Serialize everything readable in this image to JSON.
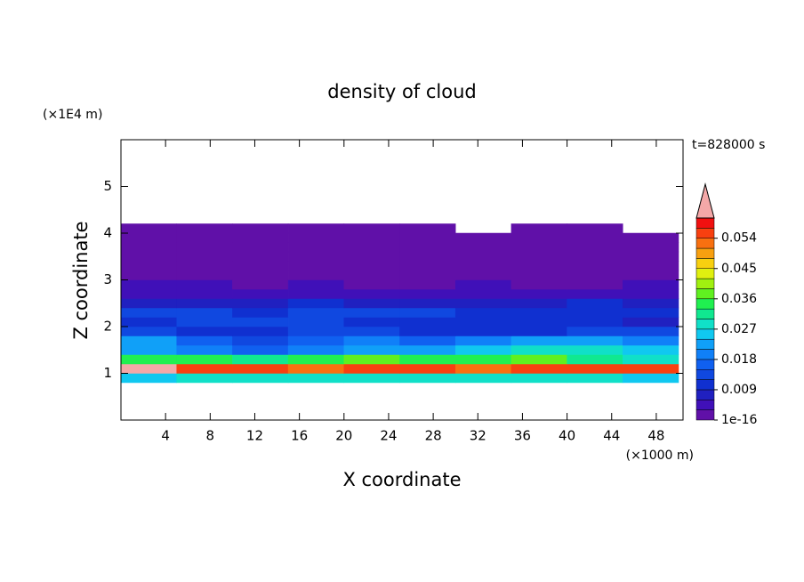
{
  "chart_data": {
    "type": "contour",
    "title": "density of cloud",
    "x_label": "X coordinate",
    "y_label": "Z coordinate",
    "x_unit": "(×1000 m)",
    "y_unit": "(×1E4 m)",
    "annotation": "t=828000 s",
    "xlim": [
      0,
      50.4
    ],
    "ylim": [
      0,
      6
    ],
    "xticks": [
      4,
      8,
      12,
      16,
      20,
      24,
      28,
      32,
      36,
      40,
      44,
      48
    ],
    "yticks": [
      1,
      2,
      3,
      4,
      5
    ],
    "x": [
      2.5,
      7.5,
      12.5,
      17.5,
      22.5,
      27.5,
      32.5,
      37.5,
      42.5,
      47.5
    ],
    "y": [
      0.9,
      1.1,
      1.3,
      1.5,
      1.7,
      1.9,
      2.1,
      2.3,
      2.5,
      2.7,
      2.9,
      3.1,
      3.3,
      3.5,
      3.7,
      3.9,
      4.1
    ],
    "z": [
      [
        0.027,
        0.03,
        0.03,
        0.028,
        0.03,
        0.029,
        0.028,
        0.03,
        0.03,
        0.027
      ],
      [
        0.061,
        0.055,
        0.054,
        0.052,
        0.055,
        0.054,
        0.053,
        0.055,
        0.054,
        0.056
      ],
      [
        0.036,
        0.035,
        0.033,
        0.036,
        0.038,
        0.035,
        0.034,
        0.037,
        0.033,
        0.03
      ],
      [
        0.022,
        0.02,
        0.018,
        0.02,
        0.024,
        0.022,
        0.026,
        0.03,
        0.028,
        0.025
      ],
      [
        0.024,
        0.016,
        0.015,
        0.018,
        0.02,
        0.017,
        0.02,
        0.024,
        0.022,
        0.02
      ],
      [
        0.014,
        0.011,
        0.01,
        0.013,
        0.014,
        0.012,
        0.011,
        0.012,
        0.014,
        0.013
      ],
      [
        0.012,
        0.013,
        0.014,
        0.013,
        0.012,
        0.01,
        0.011,
        0.012,
        0.01,
        0.009
      ],
      [
        0.015,
        0.013,
        0.012,
        0.014,
        0.015,
        0.013,
        0.012,
        0.011,
        0.012,
        0.01
      ],
      [
        0.009,
        0.008,
        0.009,
        0.01,
        0.008,
        0.007,
        0.008,
        0.009,
        0.01,
        0.008
      ],
      [
        0.006,
        0.005,
        0.006,
        0.005,
        0.005,
        0.004,
        0.005,
        0.004,
        0.005,
        0.004
      ],
      [
        0.004,
        0.004,
        0.003,
        0.004,
        0.003,
        0.003,
        0.004,
        0.003,
        0.003,
        0.004
      ],
      [
        0.003,
        0.002,
        0.002,
        0.003,
        0.002,
        0.002,
        0.002,
        0.002,
        0.002,
        0.002
      ],
      [
        0.001,
        0.001,
        0.001,
        0.001,
        0.001,
        0.001,
        0.001,
        0.001,
        0.001,
        0.001
      ],
      [
        0.001,
        0.001,
        0.001,
        0.001,
        0.001,
        0.001,
        0.001,
        0.001,
        0.001,
        0.001
      ],
      [
        0.001,
        0.001,
        0.001,
        0.001,
        0.001,
        0.001,
        0.001,
        0.001,
        0.001,
        0.001
      ],
      [
        0.001,
        0.001,
        0.001,
        0.001,
        0.001,
        0.001,
        0.001,
        0.001,
        0.001,
        0.001
      ],
      [
        0.001,
        0.001,
        0.001,
        0.001,
        0.001,
        0.001,
        null,
        0.001,
        0.001,
        null
      ]
    ],
    "clim": [
      1e-16,
      0.06
    ],
    "colorbar_ticks": [
      1e-16,
      0.009,
      0.018,
      0.027,
      0.036,
      0.045,
      0.054
    ],
    "colors": [
      "#6010a8",
      "#4010b8",
      "#2020c0",
      "#1030d0",
      "#1048e0",
      "#1060f0",
      "#1080f8",
      "#10a0f8",
      "#10c8f0",
      "#10e0c8",
      "#10e890",
      "#20f050",
      "#60f020",
      "#a0f010",
      "#e0f010",
      "#f8d010",
      "#f8a010",
      "#f87010",
      "#f84010",
      "#f01010"
    ],
    "extend_color": "#f4a8a8"
  }
}
